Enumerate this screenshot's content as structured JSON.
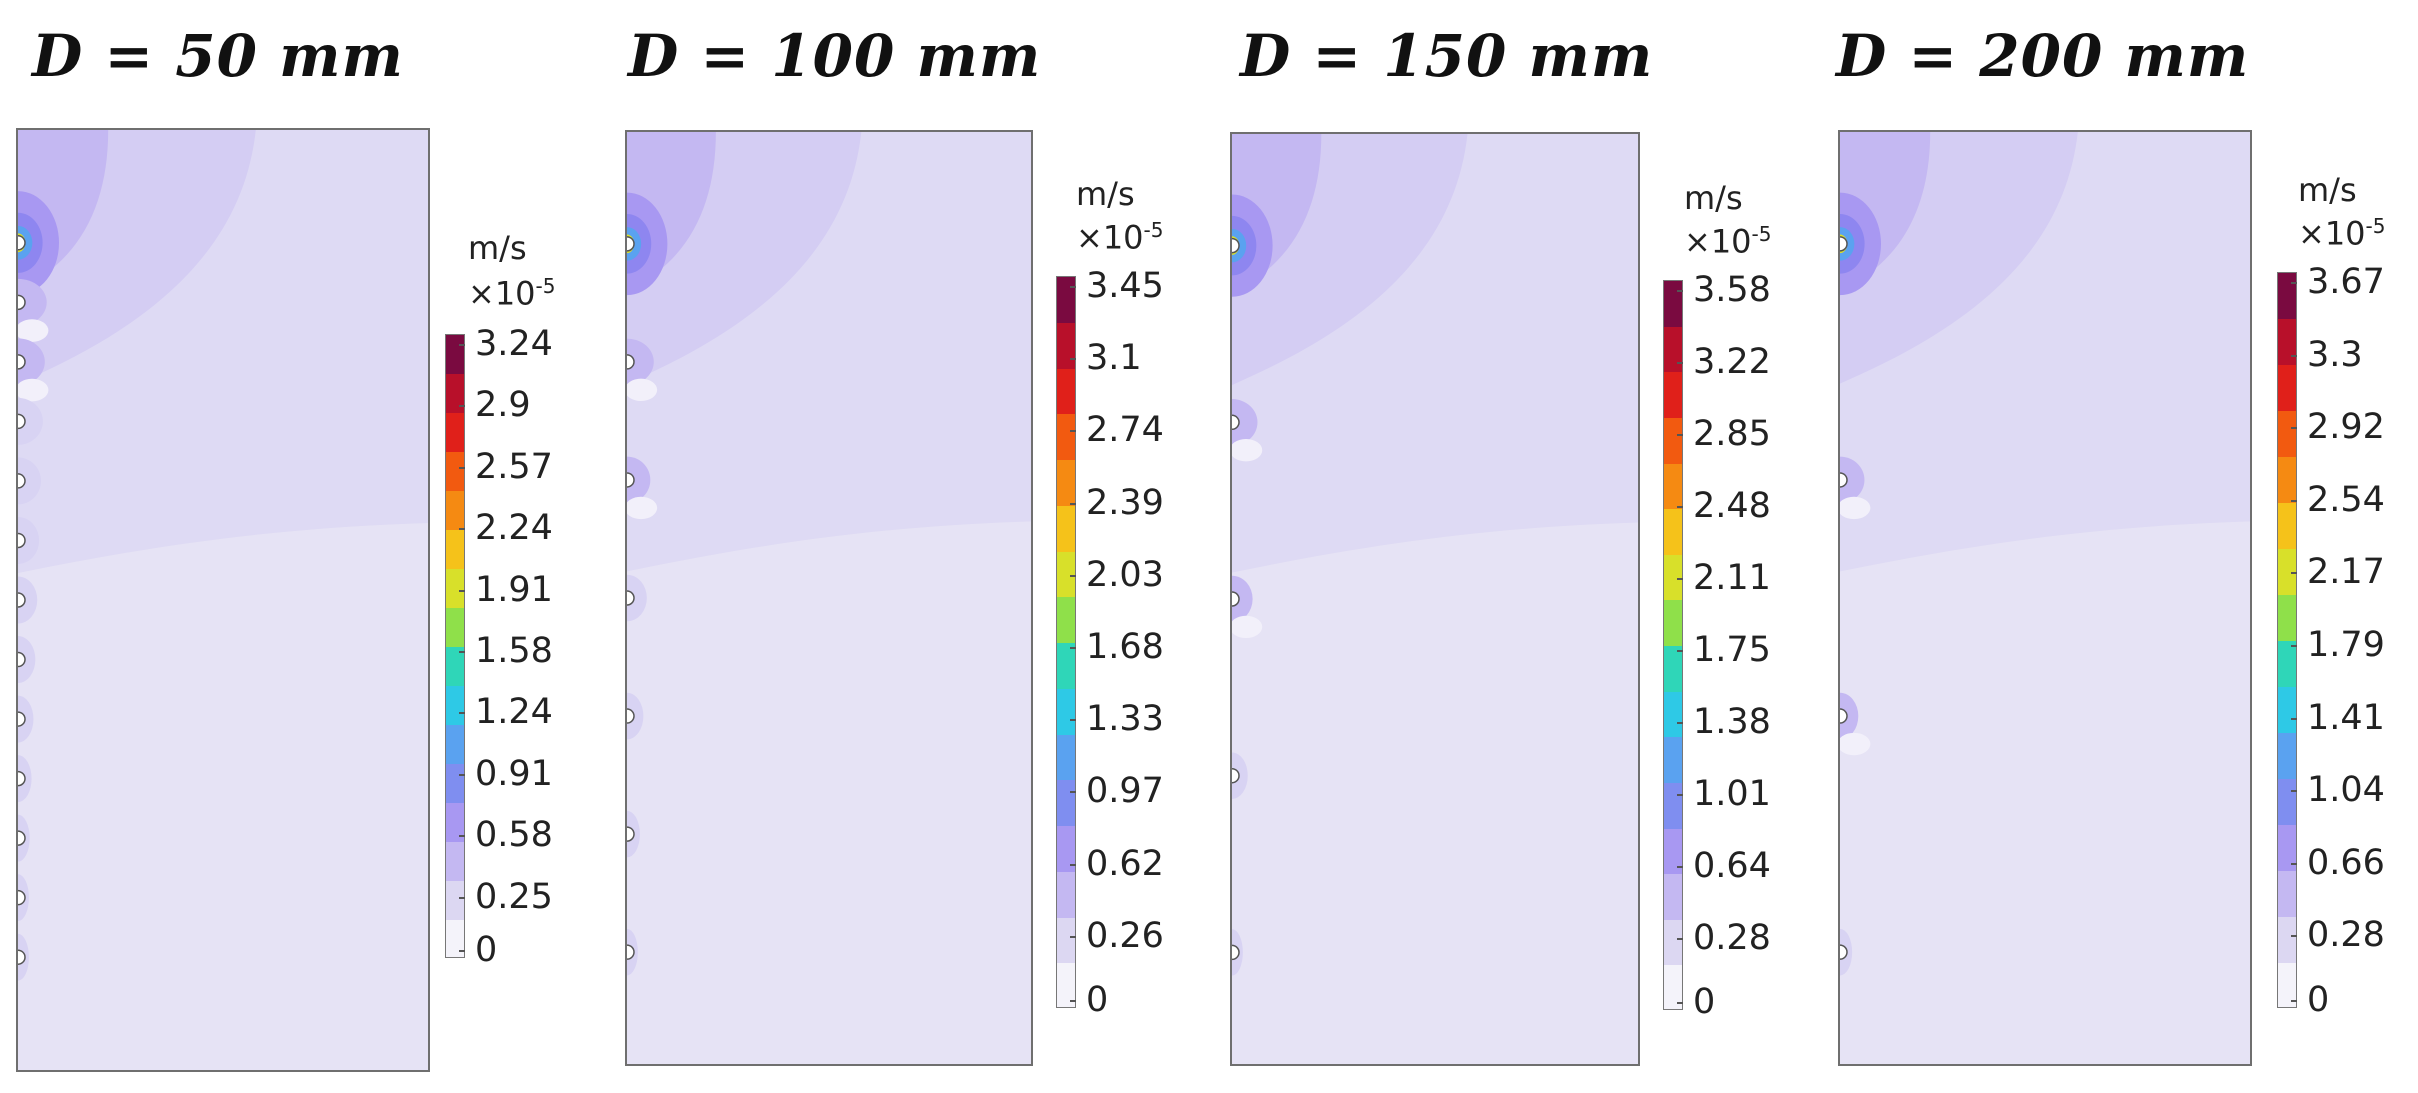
{
  "panels": [
    {
      "title": "D = 50 mm",
      "unit": "m/s",
      "scale_prefix": "×10",
      "scale_exp": "-5",
      "colorbar_ticks": [
        "3.24",
        "2.9",
        "2.57",
        "2.24",
        "1.91",
        "1.58",
        "1.24",
        "0.91",
        "0.58",
        "0.25",
        "0"
      ],
      "max_value": 3.24,
      "source_count": 13
    },
    {
      "title": "D = 100 mm",
      "unit": "m/s",
      "scale_prefix": "×10",
      "scale_exp": "-5",
      "colorbar_ticks": [
        "3.45",
        "3.1",
        "2.74",
        "2.39",
        "2.03",
        "1.68",
        "1.33",
        "0.97",
        "0.62",
        "0.26",
        "0"
      ],
      "max_value": 3.45,
      "source_count": 7
    },
    {
      "title": "D = 150 mm",
      "unit": "m/s",
      "scale_prefix": "×10",
      "scale_exp": "-5",
      "colorbar_ticks": [
        "3.58",
        "3.22",
        "2.85",
        "2.48",
        "2.11",
        "1.75",
        "1.38",
        "1.01",
        "0.64",
        "0.28",
        "0"
      ],
      "max_value": 3.58,
      "source_count": 5
    },
    {
      "title": "D = 200 mm",
      "unit": "m/s",
      "scale_prefix": "×10",
      "scale_exp": "-5",
      "colorbar_ticks": [
        "3.67",
        "3.3",
        "2.92",
        "2.54",
        "2.17",
        "1.79",
        "1.41",
        "1.04",
        "0.66",
        "0.28",
        "0"
      ],
      "max_value": 3.67,
      "source_count": 4
    }
  ],
  "colormap": [
    "#f4f3fa",
    "#dcd7f2",
    "#c4b8f2",
    "#a898f2",
    "#7f8ef0",
    "#5aa2f0",
    "#2ec9e6",
    "#2fd6b8",
    "#8fe04a",
    "#d8e02a",
    "#f5c21a",
    "#f58a12",
    "#f25a10",
    "#e0201a",
    "#b8102a",
    "#7a0a40"
  ]
}
